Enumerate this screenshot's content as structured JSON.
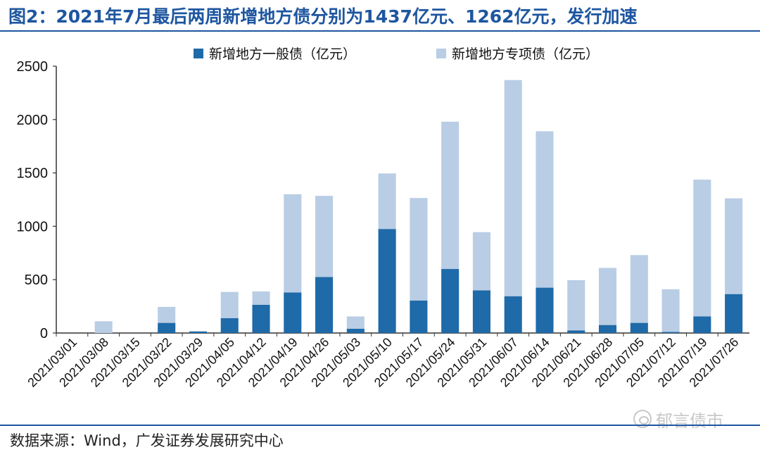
{
  "title": "图2：2021年7月最后两周新增地方债分别为1437亿元、1262亿元，发行加速",
  "source": "数据来源：Wind，广发证券发展研究中心",
  "watermark": "郁言债市",
  "colors": {
    "general": "#1f6aa8",
    "special": "#b9cde5",
    "accent": "#1e56a0"
  },
  "chart_data": {
    "type": "bar",
    "stacked": true,
    "categories": [
      "2021/03/01",
      "2021/03/08",
      "2021/03/15",
      "2021/03/22",
      "2021/03/29",
      "2021/04/05",
      "2021/04/12",
      "2021/04/19",
      "2021/04/26",
      "2021/05/03",
      "2021/05/10",
      "2021/05/17",
      "2021/05/24",
      "2021/05/31",
      "2021/06/07",
      "2021/06/14",
      "2021/06/21",
      "2021/06/28",
      "2021/07/05",
      "2021/07/12",
      "2021/07/19",
      "2021/07/26"
    ],
    "series": [
      {
        "name": "新增地方一般债（亿元）",
        "color": "#1f6aa8",
        "values": [
          0,
          0,
          0,
          95,
          15,
          140,
          265,
          380,
          525,
          40,
          975,
          305,
          600,
          400,
          345,
          425,
          25,
          75,
          95,
          10,
          155,
          365
        ]
      },
      {
        "name": "新增地方专项债（亿元）",
        "color": "#b9cde5",
        "values": [
          0,
          110,
          0,
          150,
          0,
          245,
          125,
          920,
          760,
          115,
          520,
          960,
          1380,
          545,
          2025,
          1465,
          470,
          535,
          635,
          400,
          1282,
          897
        ]
      }
    ],
    "ylim": [
      0,
      2500
    ],
    "yticks": [
      0,
      500,
      1000,
      1500,
      2000,
      2500
    ],
    "legend_position": "top",
    "grid": false
  }
}
